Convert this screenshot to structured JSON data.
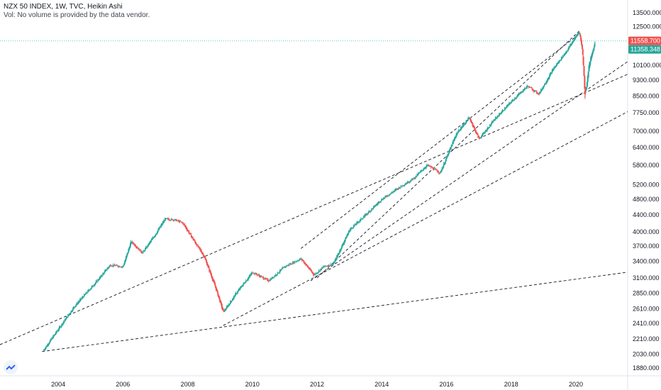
{
  "header": {
    "title": "NZX 50 INDEX, 1W, TVC, Heikin Ashi",
    "volume_note": "Vol: No volume is provided by the data vendor."
  },
  "colors": {
    "up": "#26a69a",
    "down": "#ef5350",
    "trend": "#131722",
    "last_price": "#26a69a",
    "axis_text": "#131722",
    "price_line": "#4dd0c8"
  },
  "chart_data": {
    "type": "candlestick",
    "scale": "log",
    "ylim": [
      1800,
      14500
    ],
    "xlim": [
      2002.2,
      2021.6
    ],
    "y_ticks": [
      "13500.000",
      "12500.000",
      "10100.000",
      "9300.000",
      "8500.000",
      "7750.000",
      "7000.000",
      "6400.000",
      "5800.000",
      "5200.000",
      "4800.000",
      "4400.000",
      "4000.000",
      "3700.000",
      "3400.000",
      "3100.000",
      "2850.000",
      "2610.000",
      "2410.000",
      "2210.000",
      "2030.000",
      "1880.000"
    ],
    "x_ticks": [
      "2004",
      "2006",
      "2008",
      "2010",
      "2012",
      "2014",
      "2016",
      "2018",
      "2020"
    ],
    "price_labels": [
      {
        "label": "11558.700",
        "value": 11558.7,
        "color": "#ef5350"
      },
      {
        "label": "11358.348",
        "value": 11358.348,
        "color": "#26a69a"
      }
    ],
    "horizontal_line": 11558.7,
    "anchors": [
      {
        "t": 2003.55,
        "v": 2080
      },
      {
        "t": 2004.5,
        "v": 2650
      },
      {
        "t": 2005.2,
        "v": 3050
      },
      {
        "t": 2005.6,
        "v": 3330
      },
      {
        "t": 2006.0,
        "v": 3300
      },
      {
        "t": 2006.25,
        "v": 3800
      },
      {
        "t": 2006.6,
        "v": 3560
      },
      {
        "t": 2007.0,
        "v": 3950
      },
      {
        "t": 2007.3,
        "v": 4300
      },
      {
        "t": 2007.6,
        "v": 4280
      },
      {
        "t": 2007.85,
        "v": 4200
      },
      {
        "t": 2008.2,
        "v": 3800
      },
      {
        "t": 2008.5,
        "v": 3500
      },
      {
        "t": 2008.85,
        "v": 2950
      },
      {
        "t": 2009.1,
        "v": 2560
      },
      {
        "t": 2009.5,
        "v": 2850
      },
      {
        "t": 2010.0,
        "v": 3200
      },
      {
        "t": 2010.5,
        "v": 3050
      },
      {
        "t": 2011.0,
        "v": 3300
      },
      {
        "t": 2011.5,
        "v": 3450
      },
      {
        "t": 2011.9,
        "v": 3150
      },
      {
        "t": 2012.2,
        "v": 3300
      },
      {
        "t": 2012.5,
        "v": 3350
      },
      {
        "t": 2013.0,
        "v": 4050
      },
      {
        "t": 2013.5,
        "v": 4400
      },
      {
        "t": 2014.0,
        "v": 4800
      },
      {
        "t": 2014.5,
        "v": 5100
      },
      {
        "t": 2015.0,
        "v": 5400
      },
      {
        "t": 2015.4,
        "v": 5800
      },
      {
        "t": 2015.8,
        "v": 5550
      },
      {
        "t": 2016.3,
        "v": 6900
      },
      {
        "t": 2016.7,
        "v": 7550
      },
      {
        "t": 2017.0,
        "v": 6700
      },
      {
        "t": 2017.5,
        "v": 7500
      },
      {
        "t": 2018.0,
        "v": 8250
      },
      {
        "t": 2018.5,
        "v": 9000
      },
      {
        "t": 2018.85,
        "v": 8600
      },
      {
        "t": 2019.3,
        "v": 9900
      },
      {
        "t": 2019.7,
        "v": 10900
      },
      {
        "t": 2020.1,
        "v": 12200
      },
      {
        "t": 2020.2,
        "v": 10900
      },
      {
        "t": 2020.28,
        "v": 8400
      },
      {
        "t": 2020.4,
        "v": 10100
      },
      {
        "t": 2020.6,
        "v": 11550
      }
    ],
    "trendlines": [
      {
        "t1": 2002.2,
        "v1": 2140,
        "t2": 2021.6,
        "v2": 9600
      },
      {
        "t1": 2003.5,
        "v1": 2060,
        "t2": 2021.6,
        "v2": 3200
      },
      {
        "t1": 2009.1,
        "v1": 2380,
        "t2": 2021.6,
        "v2": 7800
      },
      {
        "t1": 2011.8,
        "v1": 3050,
        "t2": 2021.6,
        "v2": 10300
      },
      {
        "t1": 2012.0,
        "v1": 3100,
        "t2": 2020.1,
        "v2": 12200
      },
      {
        "t1": 2011.5,
        "v1": 3650,
        "t2": 2020.1,
        "v2": 12000
      }
    ]
  }
}
